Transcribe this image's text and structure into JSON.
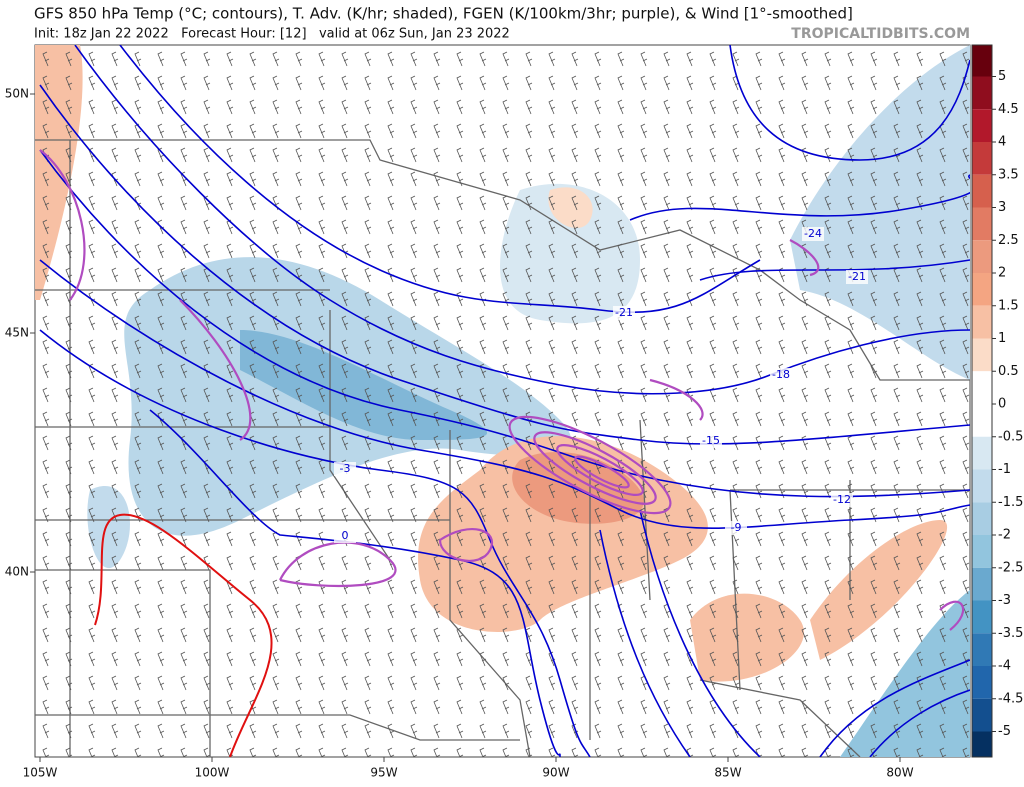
{
  "header": {
    "title": "GFS 850 hPa Temp (°C; contours), T. Adv. (K/hr; shaded), FGEN (K/100km/3hr; purple), & Wind [1°-smoothed]",
    "subtitle": "Init: 18z Jan 22 2022   Forecast Hour: [12]   valid at 06z Sun, Jan 23 2022",
    "brand": "TROPICALTIDBITS.COM"
  },
  "map": {
    "lat_ticks": [
      {
        "value": 50,
        "label": "50N"
      },
      {
        "value": 45,
        "label": "45N"
      },
      {
        "value": 40,
        "label": "40N"
      }
    ],
    "lon_ticks": [
      {
        "value": -105,
        "label": "105W"
      },
      {
        "value": -100,
        "label": "100W"
      },
      {
        "value": -95,
        "label": "95W"
      },
      {
        "value": -90,
        "label": "90W"
      },
      {
        "value": -85,
        "label": "85W"
      },
      {
        "value": -80,
        "label": "80W"
      }
    ],
    "contour_labels": [
      -24,
      -21,
      -21,
      -18,
      -15,
      -12,
      -9,
      -3,
      0
    ],
    "contour_color": "#0000d0",
    "fgen_color": "#b04cc0"
  },
  "colorbar": {
    "ticks": [
      5,
      4.5,
      4,
      3.5,
      3,
      2.5,
      2,
      1.5,
      1,
      0.5,
      0,
      -0.5,
      -1,
      -1.5,
      -2,
      -2.5,
      -3,
      -3.5,
      -4,
      -4.5,
      -5
    ],
    "colors": [
      "#67000d",
      "#8f0d1e",
      "#b2182b",
      "#c43a3a",
      "#d6604d",
      "#e27b63",
      "#ec9a7e",
      "#f4a582",
      "#f7c0a4",
      "#fbdcc8",
      "#ffffff",
      "#ffffff",
      "#d8e8f2",
      "#c2dbec",
      "#a8cde3",
      "#92c5de",
      "#6aa9cf",
      "#4393c3",
      "#3079b5",
      "#2166ac",
      "#134f8f",
      "#053061"
    ]
  }
}
